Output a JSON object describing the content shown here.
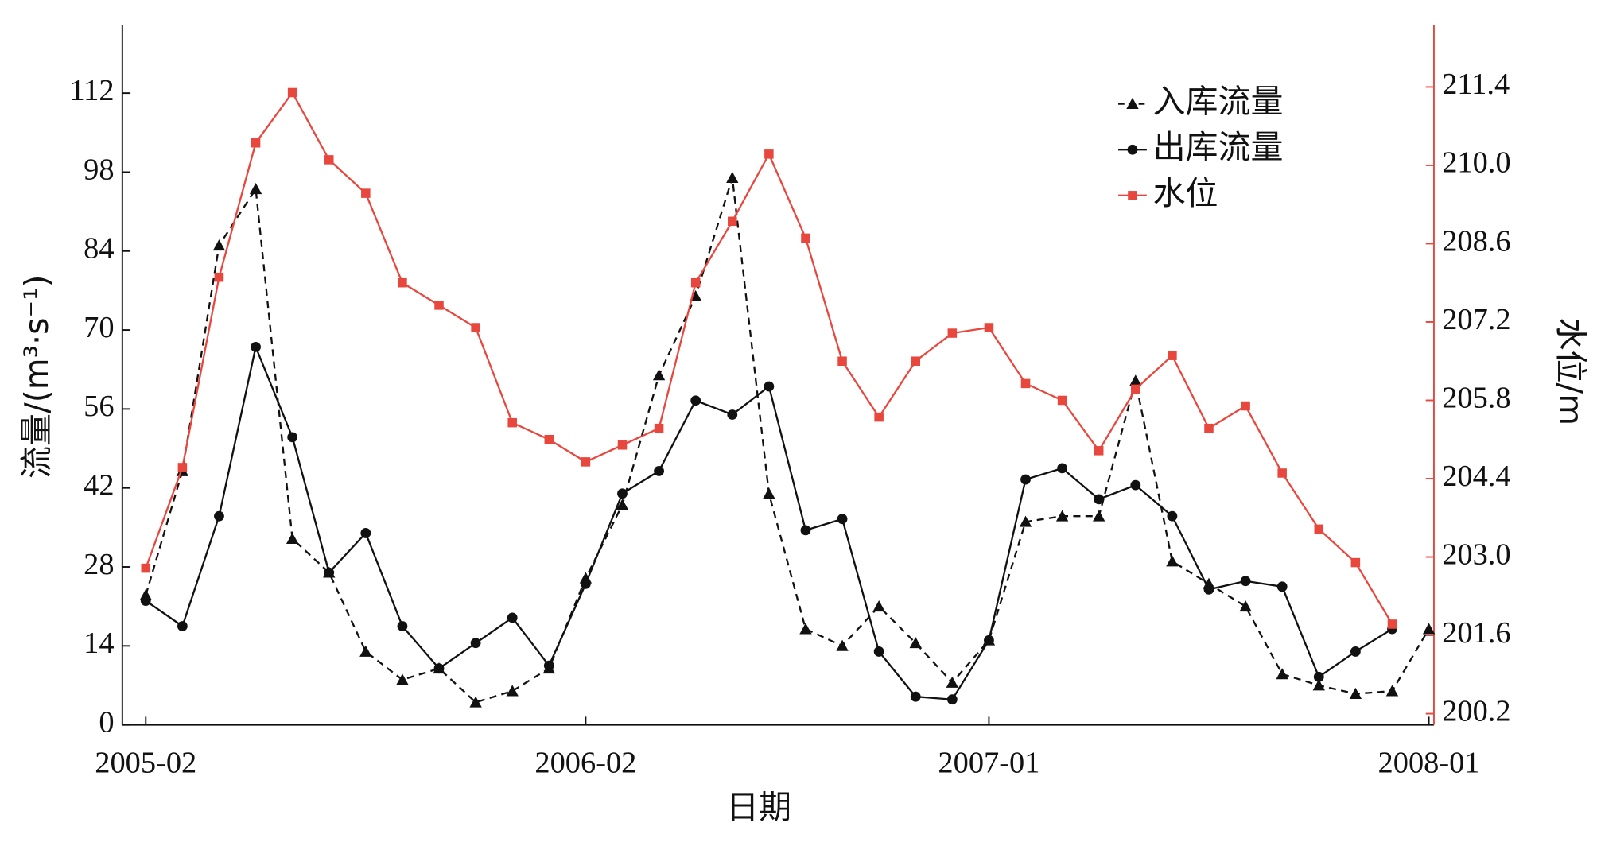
{
  "chart_data": {
    "type": "line",
    "xlabel": "日期",
    "ylabel": "流量/(m³·s⁻¹)",
    "y2label": "水位/m",
    "categories": [
      "2005-02",
      null,
      null,
      null,
      null,
      null,
      null,
      null,
      null,
      null,
      null,
      null,
      "2006-02",
      null,
      null,
      null,
      null,
      null,
      null,
      null,
      null,
      null,
      null,
      "2007-01",
      null,
      null,
      null,
      null,
      null,
      null,
      null,
      null,
      null,
      null,
      null,
      "2008-01"
    ],
    "ylim": [
      0,
      124
    ],
    "yticks": [
      0,
      14,
      28,
      42,
      56,
      70,
      84,
      98,
      112
    ],
    "y2lim": [
      200.0,
      212.5
    ],
    "y2ticks": [
      200.2,
      201.6,
      {
        "value": 203,
        "label": "203.0"
      },
      204.4,
      205.8,
      207.2,
      208.6,
      {
        "value": 210,
        "label": "210.0"
      },
      211.4
    ],
    "legend": "upper right",
    "series": [
      {
        "name": "入库流量",
        "color": "#111111",
        "marker": "triangle",
        "dash": true,
        "values": [
          23,
          45,
          85,
          95,
          33,
          27,
          13,
          8,
          10,
          4,
          6,
          10,
          26,
          39,
          62,
          76,
          97,
          41,
          17,
          14,
          21,
          14.5,
          7.5,
          15,
          36,
          37,
          37,
          61,
          29,
          25,
          21,
          9,
          7,
          5.5,
          6,
          17
        ]
      },
      {
        "name": "出库流量",
        "color": "#111111",
        "marker": "circle",
        "dash": false,
        "values": [
          22,
          17.5,
          37,
          67,
          51,
          27,
          34,
          17.5,
          10,
          14.5,
          19,
          10.5,
          25,
          41,
          45,
          57.5,
          55,
          60,
          34.5,
          36.5,
          13,
          5,
          4.5,
          15,
          43.5,
          45.5,
          40,
          42.5,
          37,
          24,
          25.5,
          24.5,
          8.5,
          13,
          17,
          null
        ]
      },
      {
        "name": "水位",
        "color": "#e8473e",
        "marker": "square",
        "dash": false,
        "axis": "y2",
        "values": [
          202.8,
          204.6,
          208.0,
          210.4,
          211.3,
          210.1,
          209.5,
          207.9,
          207.5,
          207.1,
          205.4,
          205.1,
          204.7,
          205.0,
          205.3,
          207.9,
          209.0,
          210.2,
          208.7,
          206.5,
          205.5,
          206.5,
          207.0,
          207.1,
          206.1,
          205.8,
          204.9,
          206.0,
          206.6,
          205.3,
          205.7,
          204.5,
          203.5,
          202.9,
          201.8,
          null
        ]
      }
    ]
  }
}
